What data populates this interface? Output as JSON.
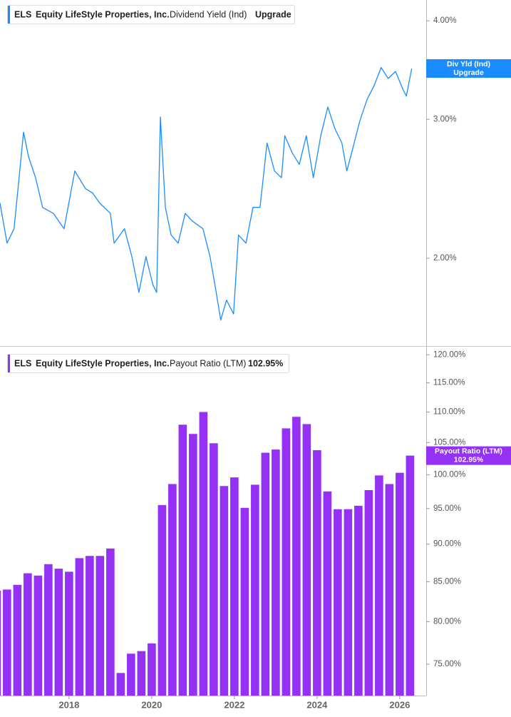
{
  "ticker": "ELS",
  "company": "Equity LifeStyle Properties, Inc.",
  "chart_data": [
    {
      "type": "line",
      "metric": "Dividend Yield (Ind)",
      "header_value": "Upgrade",
      "tag_label": "Div Yld (Ind)",
      "log_scale": true,
      "xlim": [
        2016.33,
        2026.64
      ],
      "ylim": [
        1.548,
        4.25
      ],
      "yticks": [
        {
          "value": 2,
          "label": "2.00%"
        },
        {
          "value": 3,
          "label": "3.00%"
        },
        {
          "value": 4,
          "label": "4.00%"
        }
      ],
      "series": [
        {
          "name": "Dividend Yield (Ind)",
          "color": "#1a8cff",
          "x": [
            2016.33,
            2016.5,
            2016.67,
            2016.9,
            2017.02,
            2017.19,
            2017.36,
            2017.62,
            2017.88,
            2018.14,
            2018.4,
            2018.57,
            2018.74,
            2019.0,
            2019.09,
            2019.34,
            2019.52,
            2019.69,
            2019.86,
            2020.03,
            2020.12,
            2020.21,
            2020.33,
            2020.47,
            2020.64,
            2020.81,
            2020.98,
            2021.24,
            2021.41,
            2021.53,
            2021.67,
            2021.81,
            2021.98,
            2022.1,
            2022.28,
            2022.45,
            2022.62,
            2022.79,
            2022.97,
            2023.14,
            2023.22,
            2023.4,
            2023.57,
            2023.74,
            2023.91,
            2024.09,
            2024.26,
            2024.43,
            2024.6,
            2024.72,
            2024.86,
            2025.03,
            2025.21,
            2025.38,
            2025.55,
            2025.72,
            2025.9,
            2026.07,
            2026.16,
            2026.29
          ],
          "values": [
            2.35,
            2.09,
            2.18,
            2.89,
            2.69,
            2.53,
            2.32,
            2.28,
            2.18,
            2.58,
            2.45,
            2.42,
            2.35,
            2.28,
            2.09,
            2.18,
            2.01,
            1.81,
            2.01,
            1.85,
            1.81,
            3.02,
            2.32,
            2.14,
            2.09,
            2.28,
            2.23,
            2.18,
            2.01,
            1.85,
            1.67,
            1.77,
            1.7,
            2.14,
            2.09,
            2.32,
            2.32,
            2.8,
            2.58,
            2.53,
            2.86,
            2.72,
            2.63,
            2.86,
            2.53,
            2.86,
            3.11,
            2.92,
            2.8,
            2.58,
            2.75,
            2.98,
            3.18,
            3.31,
            3.49,
            3.38,
            3.45,
            3.28,
            3.21,
            3.48
          ]
        }
      ]
    },
    {
      "type": "bar",
      "metric": "Payout Ratio (LTM)",
      "tag_label": "Payout Ratio (LTM)",
      "log_scale": true,
      "xlim": [
        2016.33,
        2026.64
      ],
      "ylim": [
        71.5,
        121.6
      ],
      "xticks": [
        2018,
        2020,
        2022,
        2024,
        2026
      ],
      "yticks": [
        {
          "value": 75,
          "label": "75.00%"
        },
        {
          "value": 80,
          "label": "80.00%"
        },
        {
          "value": 85,
          "label": "85.00%"
        },
        {
          "value": 90,
          "label": "90.00%"
        },
        {
          "value": 95,
          "label": "95.00%"
        },
        {
          "value": 100,
          "label": "100.00%"
        },
        {
          "value": 105,
          "label": "105.00%"
        },
        {
          "value": 110,
          "label": "110.00%"
        },
        {
          "value": 115,
          "label": "115.00%"
        },
        {
          "value": 120,
          "label": "120.00%"
        }
      ],
      "series": [
        {
          "name": "Payout Ratio (LTM)",
          "color": "#9530f5",
          "x": [
            2016.25,
            2016.5,
            2016.75,
            2017.0,
            2017.25,
            2017.5,
            2017.75,
            2018.0,
            2018.25,
            2018.5,
            2018.75,
            2019.0,
            2019.25,
            2019.5,
            2019.75,
            2020.0,
            2020.25,
            2020.5,
            2020.75,
            2021.0,
            2021.25,
            2021.5,
            2021.75,
            2022.0,
            2022.25,
            2022.5,
            2022.75,
            2023.0,
            2023.25,
            2023.5,
            2023.75,
            2024.0,
            2024.25,
            2024.5,
            2024.75,
            2025.0,
            2025.25,
            2025.5,
            2025.75,
            2026.0,
            2026.25
          ],
          "values": [
            83.85,
            84.0,
            84.6,
            86.1,
            85.8,
            87.3,
            86.7,
            86.3,
            88.1,
            88.4,
            88.4,
            89.4,
            74.0,
            76.2,
            76.5,
            77.4,
            95.5,
            98.6,
            107.9,
            106.4,
            110.0,
            104.9,
            98.3,
            99.6,
            95.1,
            98.5,
            103.4,
            103.9,
            107.3,
            109.2,
            108.0,
            103.8,
            97.5,
            94.9,
            94.9,
            95.4,
            97.7,
            99.9,
            98.6,
            100.3,
            102.95
          ],
          "value_labels": [
            null,
            null,
            null,
            null,
            null,
            null,
            null,
            null,
            null,
            null,
            null,
            null,
            null,
            null,
            null,
            null,
            null,
            null,
            null,
            null,
            null,
            null,
            null,
            null,
            null,
            null,
            null,
            null,
            null,
            null,
            null,
            null,
            null,
            null,
            null,
            null,
            null,
            null,
            null,
            null,
            "102.95%"
          ]
        }
      ]
    }
  ]
}
